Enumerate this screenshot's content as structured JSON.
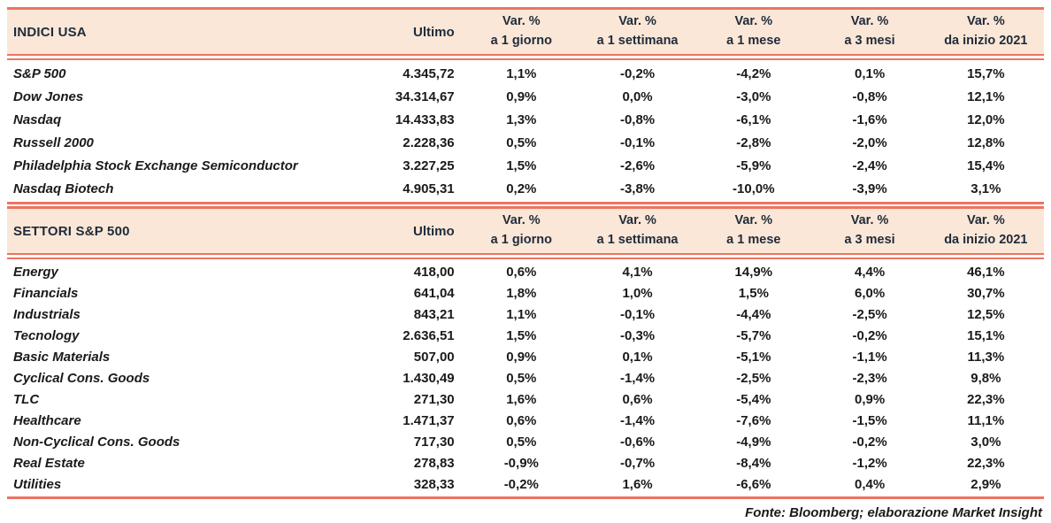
{
  "colors": {
    "accent": "#ED7460",
    "header_bg": "#FBE7D7",
    "header_text": "#1F2B3A",
    "body_text": "#1A1A1A"
  },
  "chart_data": [
    {
      "type": "table",
      "title": "INDICI USA",
      "ultimo_label": "Ultimo",
      "var_label": "Var. %",
      "var_columns": [
        "a 1 giorno",
        "a 1 settimana",
        "a 1 mese",
        "a 3 mesi",
        "da inizio 2021"
      ],
      "rows": [
        {
          "label": "S&P 500",
          "ultimo": "4.345,72",
          "var": [
            "1,1%",
            "-0,2%",
            "-4,2%",
            "0,1%",
            "15,7%"
          ]
        },
        {
          "label": "Dow Jones",
          "ultimo": "34.314,67",
          "var": [
            "0,9%",
            "0,0%",
            "-3,0%",
            "-0,8%",
            "12,1%"
          ]
        },
        {
          "label": "Nasdaq",
          "ultimo": "14.433,83",
          "var": [
            "1,3%",
            "-0,8%",
            "-6,1%",
            "-1,6%",
            "12,0%"
          ]
        },
        {
          "label": "Russell 2000",
          "ultimo": "2.228,36",
          "var": [
            "0,5%",
            "-0,1%",
            "-2,8%",
            "-2,0%",
            "12,8%"
          ]
        },
        {
          "label": "Philadelphia Stock Exchange Semiconductor",
          "ultimo": "3.227,25",
          "var": [
            "1,5%",
            "-2,6%",
            "-5,9%",
            "-2,4%",
            "15,4%"
          ]
        },
        {
          "label": "Nasdaq Biotech",
          "ultimo": "4.905,31",
          "var": [
            "0,2%",
            "-3,8%",
            "-10,0%",
            "-3,9%",
            "3,1%"
          ]
        }
      ]
    },
    {
      "type": "table",
      "title": "SETTORI S&P 500",
      "ultimo_label": "Ultimo",
      "var_label": "Var. %",
      "var_columns": [
        "a 1 giorno",
        "a 1 settimana",
        "a 1 mese",
        "a 3 mesi",
        "da inizio 2021"
      ],
      "rows": [
        {
          "label": "Energy",
          "ultimo": "418,00",
          "var": [
            "0,6%",
            "4,1%",
            "14,9%",
            "4,4%",
            "46,1%"
          ]
        },
        {
          "label": "Financials",
          "ultimo": "641,04",
          "var": [
            "1,8%",
            "1,0%",
            "1,5%",
            "6,0%",
            "30,7%"
          ]
        },
        {
          "label": "Industrials",
          "ultimo": "843,21",
          "var": [
            "1,1%",
            "-0,1%",
            "-4,4%",
            "-2,5%",
            "12,5%"
          ]
        },
        {
          "label": "Tecnology",
          "ultimo": "2.636,51",
          "var": [
            "1,5%",
            "-0,3%",
            "-5,7%",
            "-0,2%",
            "15,1%"
          ]
        },
        {
          "label": "Basic Materials",
          "ultimo": "507,00",
          "var": [
            "0,9%",
            "0,1%",
            "-5,1%",
            "-1,1%",
            "11,3%"
          ]
        },
        {
          "label": "Cyclical Cons. Goods",
          "ultimo": "1.430,49",
          "var": [
            "0,5%",
            "-1,4%",
            "-2,5%",
            "-2,3%",
            "9,8%"
          ]
        },
        {
          "label": "TLC",
          "ultimo": "271,30",
          "var": [
            "1,6%",
            "0,6%",
            "-5,4%",
            "0,9%",
            "22,3%"
          ]
        },
        {
          "label": "Healthcare",
          "ultimo": "1.471,37",
          "var": [
            "0,6%",
            "-1,4%",
            "-7,6%",
            "-1,5%",
            "11,1%"
          ]
        },
        {
          "label": "Non-Cyclical Cons. Goods",
          "ultimo": "717,30",
          "var": [
            "0,5%",
            "-0,6%",
            "-4,9%",
            "-0,2%",
            "3,0%"
          ]
        },
        {
          "label": "Real Estate",
          "ultimo": "278,83",
          "var": [
            "-0,9%",
            "-0,7%",
            "-8,4%",
            "-1,2%",
            "22,3%"
          ]
        },
        {
          "label": "Utilities",
          "ultimo": "328,33",
          "var": [
            "-0,2%",
            "1,6%",
            "-6,6%",
            "0,4%",
            "2,9%"
          ]
        }
      ]
    }
  ],
  "footer": "Fonte: Bloomberg; elaborazione Market Insight"
}
